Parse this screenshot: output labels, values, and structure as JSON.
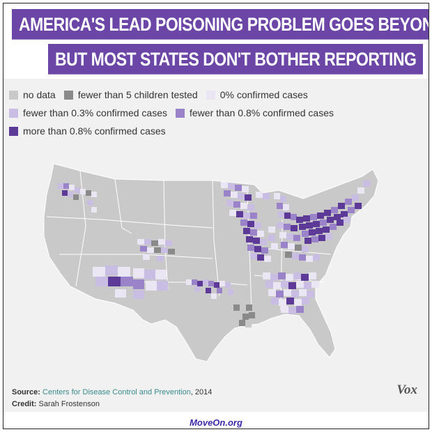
{
  "title": {
    "line1": "AMERICA'S LEAD POISONING PROBLEM GOES BEYOND FLINT,",
    "line2": "BUT MOST STATES DON'T BOTHER REPORTING"
  },
  "legend": [
    {
      "label": "no data",
      "color": "#c9c9c9"
    },
    {
      "label": "fewer than 5 children tested",
      "color": "#8a8a8a"
    },
    {
      "label": "0% confirmed cases",
      "color": "#ebe6f4"
    },
    {
      "label": "fewer than 0.3% confirmed cases",
      "color": "#c9bde3"
    },
    {
      "label": "fewer than 0.8% confirmed cases",
      "color": "#9a83c8"
    },
    {
      "label": "more than 0.8% confirmed cases",
      "color": "#5e3a98"
    }
  ],
  "source_label": "Source:",
  "source_text": "Centers for Disease Control and Prevention",
  "source_year": ", 2014",
  "credit_label": "Credit:",
  "credit_text": "Sarah Frostenson",
  "brand": "Vox",
  "footer": "MoveOn.org"
}
